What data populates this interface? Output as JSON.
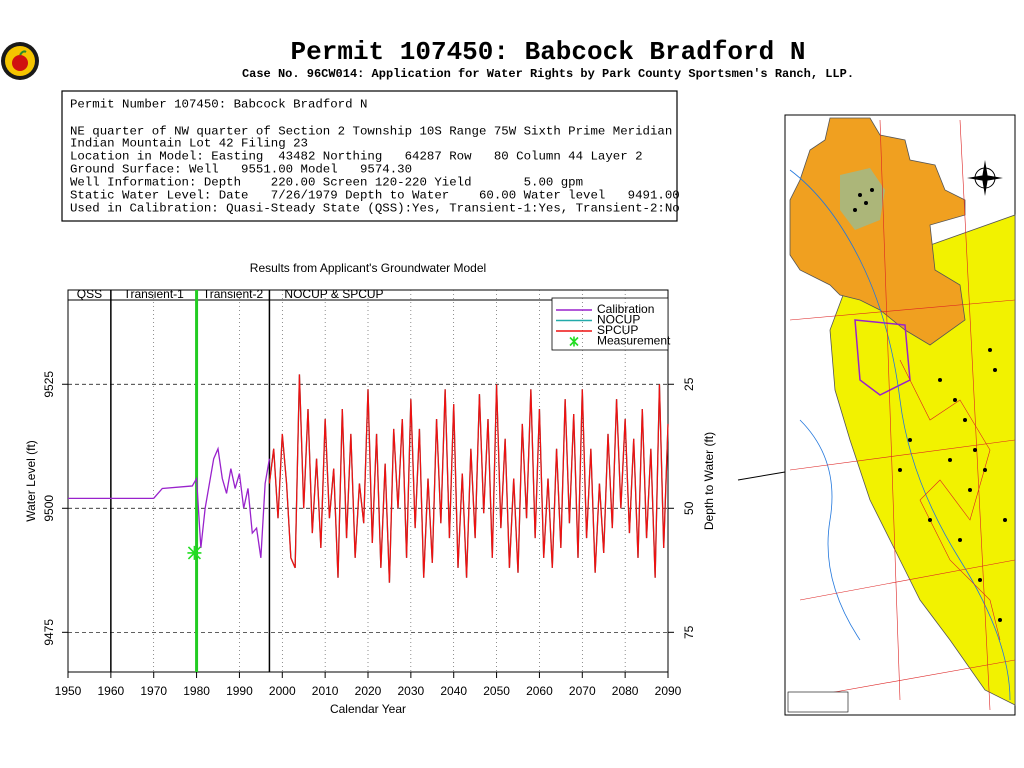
{
  "header": {
    "title": "Permit 107450:  Babcock Bradford N",
    "subtitle": "Case No. 96CW014: Application for Water Rights by Park County Sportsmen's Ranch, LLP."
  },
  "info": {
    "lines": [
      "Permit Number 107450: Babcock Bradford N",
      "NE quarter of NW quarter of Section 2 Township 10S Range 75W Sixth Prime Meridian",
      "Indian Mountain Lot 42 Filing 23",
      "Location in Model: Easting  43482 Northing   64287 Row   80 Column 44 Layer 2",
      "Ground Surface: Well   9551.00 Model   9574.30",
      "Well Information: Depth    220.00 Screen 120-220 Yield       5.00 gpm",
      "Static Water Level: Date   7/26/1979 Depth to Water    60.00 Water level   9491.00",
      "Used in Calibration: Quasi-Steady State (QSS):Yes, Transient-1:Yes, Transient-2:No"
    ]
  },
  "chart_data": {
    "type": "line",
    "title": "Results from Applicant's Groundwater Model",
    "x_label": "Calendar Year",
    "y_label": "Water Level (ft)",
    "y2_label": "Depth to Water (ft)",
    "xlim": [
      1950,
      2090
    ],
    "xticks": [
      1950,
      1960,
      1970,
      1980,
      1990,
      2000,
      2010,
      2020,
      2030,
      2040,
      2050,
      2060,
      2070,
      2080,
      2090
    ],
    "ylim": [
      9467,
      9544
    ],
    "yticks": [
      9475,
      9500,
      9525
    ],
    "y2lim": [
      83,
      6
    ],
    "y2ticks": [
      25,
      50,
      75
    ],
    "grid": true,
    "periods": [
      {
        "label": "QSS",
        "start": 1950,
        "end": 1960
      },
      {
        "label": "Transient-1",
        "start": 1960,
        "end": 1980,
        "color": "#000000"
      },
      {
        "label": "Transient-2",
        "start": 1980,
        "end": 1997,
        "color": "#22cc22"
      },
      {
        "label": "NOCUP  &  SPCUP",
        "start": 1997,
        "end": 2090,
        "color": "#000000"
      }
    ],
    "series": [
      {
        "name": "Calibration",
        "color": "#9922cc",
        "mode": "lines",
        "x": [
          1950,
          1970,
          1972,
          1979,
          1980,
          1981,
          1982,
          1984,
          1985,
          1986,
          1987,
          1988,
          1989,
          1990,
          1991,
          1992,
          1993,
          1994,
          1995,
          1996,
          1997
        ],
        "values": [
          9502,
          9502,
          9504,
          9504.5,
          9506,
          9492,
          9500,
          9510,
          9512,
          9506,
          9503,
          9508,
          9504,
          9507,
          9500,
          9504,
          9495,
          9496,
          9490,
          9505,
          9510
        ]
      },
      {
        "name": "NOCUP",
        "color": "#22aaaa",
        "mode": "lines",
        "x": [
          1997,
          1998,
          1999,
          2000,
          2001,
          2002,
          2003,
          2004,
          2005,
          2006,
          2007,
          2008,
          2009,
          2010,
          2011,
          2012,
          2013,
          2014,
          2015,
          2016,
          2017,
          2018,
          2019,
          2020,
          2021,
          2022,
          2023,
          2024,
          2025,
          2026,
          2027,
          2028,
          2029,
          2030,
          2031,
          2032,
          2033,
          2034,
          2035,
          2036,
          2037,
          2038,
          2039,
          2040,
          2041,
          2042,
          2043,
          2044,
          2045,
          2046,
          2047,
          2048,
          2049,
          2050,
          2051,
          2052,
          2053,
          2054,
          2055,
          2056,
          2057,
          2058,
          2059,
          2060,
          2061,
          2062,
          2063,
          2064,
          2065,
          2066,
          2067,
          2068,
          2069,
          2070,
          2071,
          2072,
          2073,
          2074,
          2075,
          2076,
          2077,
          2078,
          2079,
          2080,
          2081,
          2082,
          2083,
          2084,
          2085,
          2086,
          2087,
          2088,
          2089,
          2090
        ],
        "values": [
          9505,
          9512,
          9498,
          9515,
          9505,
          9490,
          9488,
          9527,
          9500,
          9520,
          9495,
          9510,
          9492,
          9518,
          9498,
          9508,
          9486,
          9520,
          9494,
          9515,
          9490,
          9505,
          9497,
          9524,
          9493,
          9515,
          9488,
          9509,
          9485,
          9516,
          9500,
          9518,
          9490,
          9522,
          9496,
          9516,
          9486,
          9506,
          9489,
          9518,
          9497,
          9524,
          9494,
          9521,
          9488,
          9507,
          9486,
          9512,
          9494,
          9523,
          9499,
          9518,
          9490,
          9525,
          9496,
          9514,
          9488,
          9506,
          9487,
          9517,
          9498,
          9524,
          9494,
          9520,
          9490,
          9506,
          9488,
          9512,
          9492,
          9522,
          9497,
          9519,
          9490,
          9524,
          9494,
          9512,
          9487,
          9505,
          9491,
          9515,
          9496,
          9522,
          9500,
          9518,
          9495,
          9514,
          9490,
          9520,
          9494,
          9512,
          9486,
          9525,
          9492,
          9517
        ]
      },
      {
        "name": "SPCUP",
        "color": "#ee1111",
        "mode": "lines",
        "x": [
          1997,
          1998,
          1999,
          2000,
          2001,
          2002,
          2003,
          2004,
          2005,
          2006,
          2007,
          2008,
          2009,
          2010,
          2011,
          2012,
          2013,
          2014,
          2015,
          2016,
          2017,
          2018,
          2019,
          2020,
          2021,
          2022,
          2023,
          2024,
          2025,
          2026,
          2027,
          2028,
          2029,
          2030,
          2031,
          2032,
          2033,
          2034,
          2035,
          2036,
          2037,
          2038,
          2039,
          2040,
          2041,
          2042,
          2043,
          2044,
          2045,
          2046,
          2047,
          2048,
          2049,
          2050,
          2051,
          2052,
          2053,
          2054,
          2055,
          2056,
          2057,
          2058,
          2059,
          2060,
          2061,
          2062,
          2063,
          2064,
          2065,
          2066,
          2067,
          2068,
          2069,
          2070,
          2071,
          2072,
          2073,
          2074,
          2075,
          2076,
          2077,
          2078,
          2079,
          2080,
          2081,
          2082,
          2083,
          2084,
          2085,
          2086,
          2087,
          2088,
          2089,
          2090
        ],
        "values": [
          9505,
          9512,
          9498,
          9515,
          9505,
          9490,
          9488,
          9527,
          9500,
          9520,
          9495,
          9510,
          9492,
          9518,
          9498,
          9508,
          9486,
          9520,
          9494,
          9515,
          9490,
          9505,
          9497,
          9524,
          9493,
          9515,
          9488,
          9509,
          9485,
          9516,
          9500,
          9518,
          9490,
          9522,
          9496,
          9516,
          9486,
          9506,
          9489,
          9518,
          9497,
          9524,
          9494,
          9521,
          9488,
          9507,
          9486,
          9512,
          9494,
          9523,
          9499,
          9518,
          9490,
          9525,
          9496,
          9514,
          9488,
          9506,
          9487,
          9517,
          9498,
          9524,
          9494,
          9520,
          9490,
          9506,
          9488,
          9512,
          9492,
          9522,
          9497,
          9519,
          9490,
          9524,
          9494,
          9512,
          9487,
          9505,
          9491,
          9515,
          9496,
          9522,
          9500,
          9518,
          9495,
          9514,
          9490,
          9520,
          9494,
          9512,
          9486,
          9525,
          9492,
          9517
        ]
      },
      {
        "name": "Measurement",
        "color": "#22dd22",
        "mode": "markers",
        "x": [
          1979.5
        ],
        "values": [
          9491
        ]
      }
    ]
  }
}
